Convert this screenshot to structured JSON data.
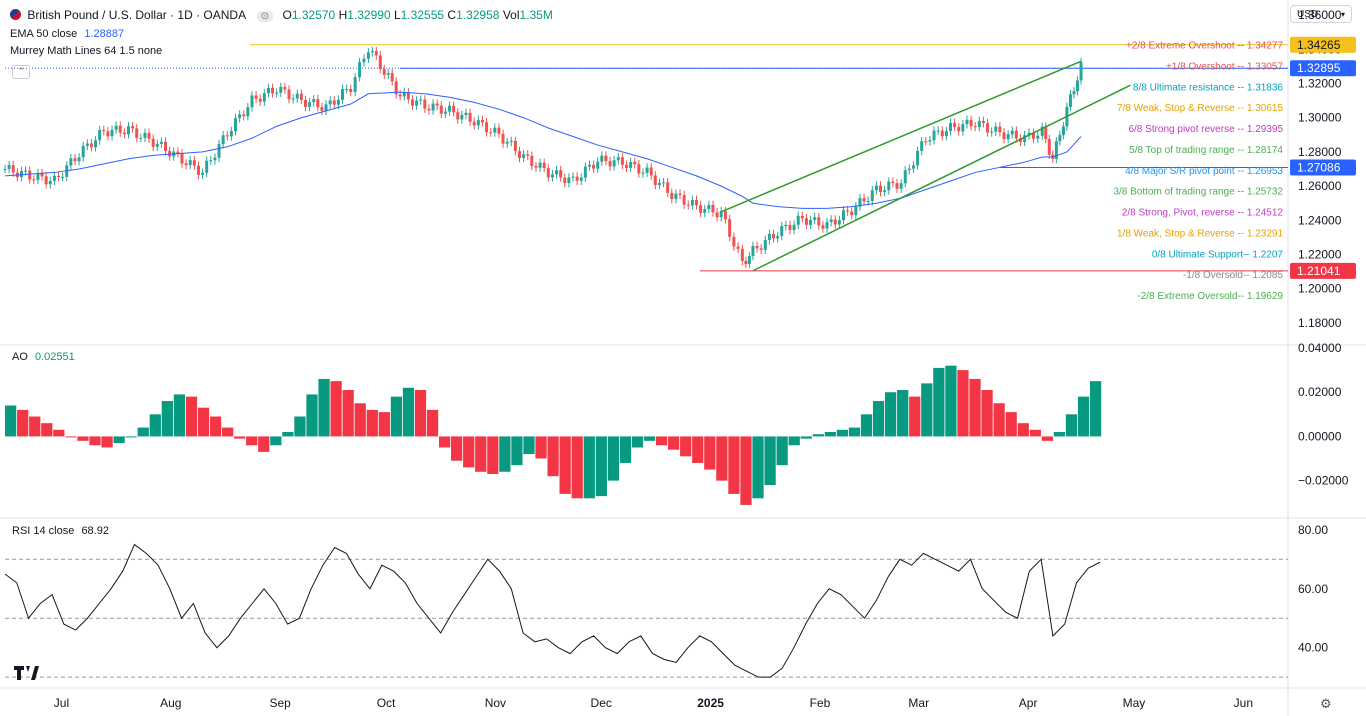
{
  "header": {
    "symbol_title": "British Pound / U.S. Dollar · 1D · OANDA",
    "open_label": "O",
    "open": "1.32570",
    "high_label": "H",
    "high": "1.32990",
    "low_label": "L",
    "low": "1.32555",
    "close_label": "C",
    "close": "1.32958",
    "vol_label": "Vol",
    "vol": "1.35M",
    "currency": "USD"
  },
  "indicators": {
    "ema_label": "EMA 50 close",
    "ema_value": "1.28887",
    "murrey_label": "Murrey Math Lines 64 1.5 none",
    "ao_label": "AO",
    "ao_value": "0.02551",
    "rsi_label": "RSI 14 close",
    "rsi_value": "68.92"
  },
  "colors": {
    "up": "#26a69a",
    "down": "#ef5350",
    "ema": "#2962ff",
    "channel": "#2e9a2e",
    "ao_up": "#089981",
    "ao_down": "#f23645",
    "rsi": "#131722"
  },
  "price_badges": [
    {
      "text": "1.34265",
      "value": 1.34265,
      "bg": "#f7c01b",
      "fg": "#131722"
    },
    {
      "text": "1.32895",
      "value": 1.32895,
      "bg": "#2962ff",
      "fg": "#ffffff"
    },
    {
      "text": "1.27086",
      "value": 1.27086,
      "bg": "#2962ff",
      "fg": "#ffffff"
    },
    {
      "text": "1.21041",
      "value": 1.21041,
      "bg": "#f23645",
      "fg": "#ffffff"
    }
  ],
  "murrey_labels": [
    {
      "text": "+2/8 Extreme Overshoot --  1.34277",
      "value": 1.34277,
      "color": "#e5534b"
    },
    {
      "text": "+1/8 Overshoot --  1.33057",
      "value": 1.33057,
      "color": "#e5534b"
    },
    {
      "text": "8/8 Ultimate resistance --  1.31836",
      "value": 1.31836,
      "color": "#00a3c4"
    },
    {
      "text": "7/8 Weak, Stop & Reverse --  1.30615",
      "value": 1.30615,
      "color": "#e6a100"
    },
    {
      "text": "6/8 Strong pivot reverse --  1.29395",
      "value": 1.29395,
      "color": "#c23bc4"
    },
    {
      "text": "5/8 Top of trading range --  1.28174",
      "value": 1.28174,
      "color": "#4caf50"
    },
    {
      "text": "4/8 Major S/R pivot point --  1.26953",
      "value": 1.26953,
      "color": "#2196f3"
    },
    {
      "text": "3/8 Bottom of trading range --  1.25732",
      "value": 1.25732,
      "color": "#4caf50"
    },
    {
      "text": "2/8 Strong, Pivot, reverse --  1.24512",
      "value": 1.24512,
      "color": "#c23bc4"
    },
    {
      "text": "1/8 Weak, Stop & Reverse --  1.23291",
      "value": 1.23291,
      "color": "#e6a100"
    },
    {
      "text": "0/8 Ultimate Support--  1.2207",
      "value": 1.2207,
      "color": "#00a3c4"
    },
    {
      "text": "-1/8 Oversold--  1.2085",
      "value": 1.2085,
      "color": "#888888"
    },
    {
      "text": "-2/8 Extreme Oversold--  1.19629",
      "value": 1.19629,
      "color": "#4caf50"
    }
  ],
  "chart_data": [
    {
      "type": "candlestick",
      "title": "British Pound / U.S. Dollar · 1D · OANDA",
      "x": [
        "2024-06-15",
        "2024-06-22",
        "2024-06-29",
        "2024-07-06",
        "2024-07-13",
        "2024-07-20",
        "2024-07-27",
        "2024-08-03",
        "2024-08-10",
        "2024-08-17",
        "2024-08-24",
        "2024-08-31",
        "2024-09-07",
        "2024-09-14",
        "2024-09-21",
        "2024-09-26",
        "2024-10-05",
        "2024-10-12",
        "2024-10-19",
        "2024-10-26",
        "2024-11-02",
        "2024-11-09",
        "2024-11-16",
        "2024-11-23",
        "2024-11-30",
        "2024-12-07",
        "2024-12-14",
        "2024-12-21",
        "2024-12-28",
        "2025-01-04",
        "2025-01-10",
        "2025-01-13",
        "2025-01-20",
        "2025-01-27",
        "2025-02-03",
        "2025-02-10",
        "2025-02-17",
        "2025-02-24",
        "2025-03-03",
        "2025-03-10",
        "2025-03-17",
        "2025-03-24",
        "2025-03-31",
        "2025-04-05",
        "2025-04-08",
        "2025-04-12",
        "2025-04-16"
      ],
      "close": [
        1.27,
        1.266,
        1.263,
        1.279,
        1.292,
        1.293,
        1.286,
        1.277,
        1.268,
        1.291,
        1.31,
        1.317,
        1.31,
        1.306,
        1.318,
        1.341,
        1.313,
        1.307,
        1.304,
        1.298,
        1.29,
        1.277,
        1.268,
        1.263,
        1.275,
        1.274,
        1.268,
        1.255,
        1.248,
        1.244,
        1.215,
        1.222,
        1.233,
        1.241,
        1.237,
        1.246,
        1.258,
        1.262,
        1.288,
        1.294,
        1.297,
        1.291,
        1.288,
        1.292,
        1.276,
        1.305,
        1.33
      ],
      "ylim": [
        1.17,
        1.363
      ],
      "y_ticks": [
        1.18,
        1.2,
        1.22,
        1.24,
        1.26,
        1.28,
        1.3,
        1.32,
        1.34,
        1.36
      ],
      "y_tick_labels": [
        "1.18000",
        "1.20000",
        "1.22000",
        "1.24000",
        "1.26000",
        "1.28000",
        "1.30000",
        "1.32000",
        "1.34000",
        "1.36000"
      ],
      "x_tick_labels": [
        {
          "label": "Jul",
          "date": "2024-07-01",
          "bold": false
        },
        {
          "label": "Aug",
          "date": "2024-08-01",
          "bold": false
        },
        {
          "label": "Sep",
          "date": "2024-09-01",
          "bold": false
        },
        {
          "label": "Oct",
          "date": "2024-10-01",
          "bold": false
        },
        {
          "label": "Nov",
          "date": "2024-11-01",
          "bold": false
        },
        {
          "label": "Dec",
          "date": "2024-12-01",
          "bold": false
        },
        {
          "label": "2025",
          "date": "2025-01-01",
          "bold": true
        },
        {
          "label": "Feb",
          "date": "2025-02-01",
          "bold": false
        },
        {
          "label": "Mar",
          "date": "2025-03-01",
          "bold": false
        },
        {
          "label": "Apr",
          "date": "2025-04-01",
          "bold": false
        },
        {
          "label": "May",
          "date": "2025-05-01",
          "bold": false
        },
        {
          "label": "Jun",
          "date": "2025-06-01",
          "bold": false
        }
      ],
      "ema50": [
        1.266,
        1.267,
        1.268,
        1.27,
        1.273,
        1.276,
        1.278,
        1.279,
        1.28,
        1.283,
        1.288,
        1.295,
        1.3,
        1.304,
        1.308,
        1.314,
        1.315,
        1.314,
        1.312,
        1.309,
        1.305,
        1.3,
        1.294,
        1.289,
        1.284,
        1.28,
        1.276,
        1.271,
        1.266,
        1.26,
        1.254,
        1.25,
        1.248,
        1.247,
        1.247,
        1.248,
        1.25,
        1.253,
        1.258,
        1.263,
        1.268,
        1.271,
        1.274,
        1.277,
        1.277,
        1.28,
        1.289
      ],
      "trend_channel": {
        "upper": [
          [
            "2025-01-04",
            1.245
          ],
          [
            "2025-04-16",
            1.333
          ]
        ],
        "lower": [
          [
            "2025-01-13",
            1.2105
          ],
          [
            "2025-04-30",
            1.319
          ]
        ]
      }
    },
    {
      "type": "bar",
      "title": "AO",
      "ylim": [
        -0.036,
        0.04
      ],
      "y_ticks": [
        -0.02,
        0.0,
        0.02,
        0.04
      ],
      "y_tick_labels": [
        "−0.02000",
        "0.00000",
        "0.02000",
        "0.04000"
      ],
      "values": [
        0.014,
        0.012,
        0.009,
        0.006,
        0.003,
        0.0,
        -0.002,
        -0.004,
        -0.005,
        -0.003,
        0.0,
        0.004,
        0.01,
        0.016,
        0.019,
        0.018,
        0.013,
        0.009,
        0.004,
        -0.001,
        -0.004,
        -0.007,
        -0.004,
        0.002,
        0.009,
        0.019,
        0.026,
        0.025,
        0.021,
        0.015,
        0.012,
        0.011,
        0.018,
        0.022,
        0.021,
        0.012,
        -0.005,
        -0.011,
        -0.014,
        -0.016,
        -0.017,
        -0.016,
        -0.013,
        -0.008,
        -0.01,
        -0.018,
        -0.026,
        -0.028,
        -0.028,
        -0.027,
        -0.02,
        -0.012,
        -0.005,
        -0.002,
        -0.004,
        -0.006,
        -0.009,
        -0.012,
        -0.015,
        -0.02,
        -0.026,
        -0.031,
        -0.028,
        -0.022,
        -0.013,
        -0.004,
        -0.001,
        0.001,
        0.002,
        0.003,
        0.004,
        0.01,
        0.016,
        0.02,
        0.021,
        0.018,
        0.024,
        0.031,
        0.032,
        0.03,
        0.026,
        0.021,
        0.015,
        0.011,
        0.006,
        0.003,
        -0.002,
        0.002,
        0.01,
        0.018,
        0.025
      ]
    },
    {
      "type": "line",
      "title": "RSI 14 close",
      "ylim": [
        27,
        83
      ],
      "y_ticks": [
        40,
        60,
        80
      ],
      "y_tick_labels": [
        "40.00",
        "60.00",
        "80.00"
      ],
      "bands": [
        30,
        50,
        70
      ],
      "values": [
        65,
        62,
        50,
        55,
        58,
        48,
        46,
        50,
        55,
        60,
        66,
        75,
        72,
        68,
        60,
        50,
        55,
        45,
        40,
        44,
        50,
        55,
        60,
        55,
        48,
        50,
        60,
        68,
        74,
        72,
        65,
        60,
        68,
        66,
        62,
        55,
        50,
        45,
        52,
        58,
        64,
        70,
        66,
        60,
        45,
        42,
        43,
        40,
        38,
        42,
        44,
        40,
        38,
        42,
        44,
        38,
        36,
        35,
        40,
        44,
        42,
        38,
        34,
        32,
        30,
        30,
        33,
        40,
        48,
        55,
        60,
        58,
        54,
        50,
        56,
        64,
        70,
        68,
        72,
        70,
        68,
        66,
        70,
        60,
        56,
        52,
        50,
        66,
        70,
        44,
        48,
        62,
        67,
        69
      ],
      "ylim_note": ""
    }
  ]
}
